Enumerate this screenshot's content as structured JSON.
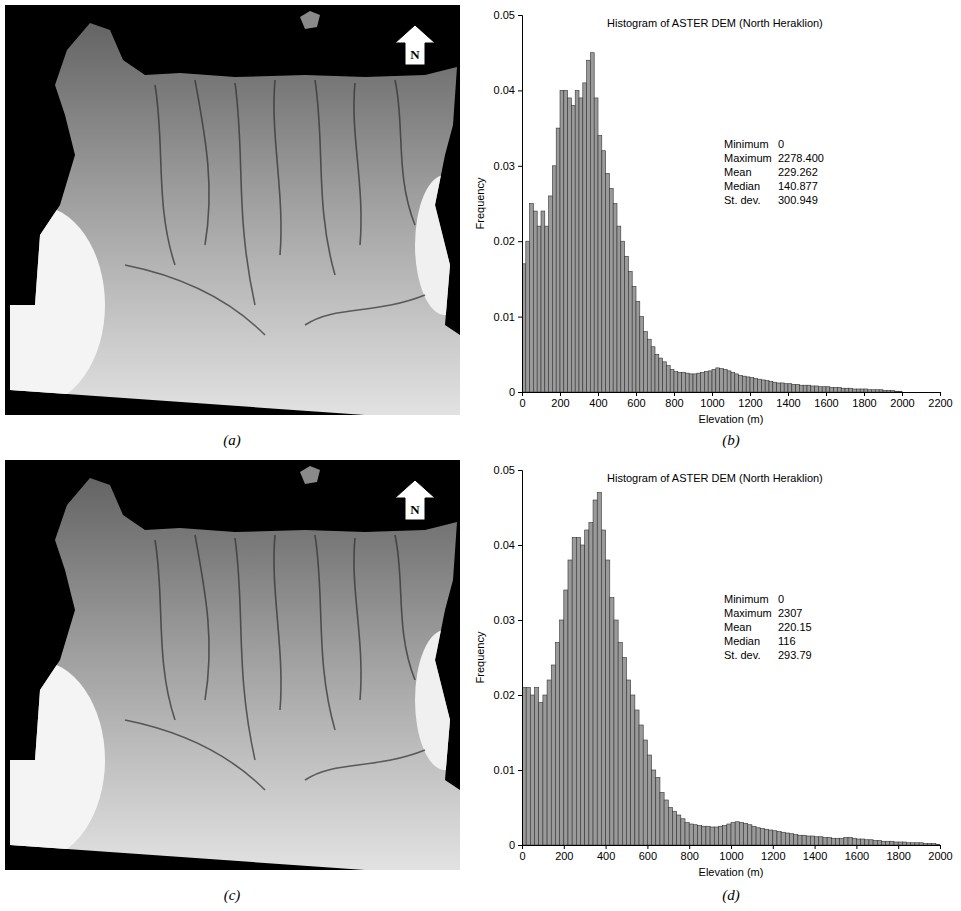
{
  "maps": [
    {
      "panel": "(a)",
      "north_label": "N"
    },
    {
      "panel": "(c)",
      "north_label": "N"
    }
  ],
  "chart_data": [
    {
      "type": "histogram",
      "panel": "(b)",
      "title": "Histogram of ASTER DEM (North Heraklion)",
      "x_label": "Elevation (m)",
      "y_label": "Frequency",
      "color": "#9a9a9a",
      "annotations": [
        {
          "label": "Minimum",
          "value": "0"
        },
        {
          "label": "Maximum",
          "value": "2278.400"
        },
        {
          "label": "Mean",
          "value": "229.262"
        },
        {
          "label": "Median",
          "value": "140.877"
        },
        {
          "label": "St. dev.",
          "value": "300.949"
        }
      ],
      "bins": [
        0,
        20,
        40,
        60,
        80,
        100,
        120,
        140,
        160,
        180,
        200,
        220,
        240,
        260,
        280,
        300,
        320,
        340,
        360,
        380,
        400,
        420,
        440,
        460,
        480,
        500,
        520,
        540,
        560,
        580,
        600,
        620,
        640,
        660,
        680,
        700,
        720,
        740,
        760,
        780,
        800,
        820,
        840,
        860,
        880,
        900,
        920,
        940,
        960,
        980,
        1000,
        1020,
        1040,
        1060,
        1080,
        1100,
        1120,
        1140,
        1160,
        1180,
        1200,
        1220,
        1240,
        1260,
        1280,
        1300,
        1320,
        1340,
        1360,
        1380,
        1400,
        1420,
        1440,
        1460,
        1480,
        1500,
        1520,
        1540,
        1560,
        1580,
        1600,
        1620,
        1640,
        1660,
        1680,
        1700,
        1720,
        1740,
        1760,
        1780,
        1800,
        1820,
        1840,
        1860,
        1880,
        1900,
        1920,
        1940,
        1960,
        1980,
        2000
      ],
      "values": [
        0.017,
        0.02,
        0.025,
        0.024,
        0.022,
        0.024,
        0.022,
        0.026,
        0.03,
        0.035,
        0.04,
        0.04,
        0.039,
        0.038,
        0.04,
        0.039,
        0.041,
        0.044,
        0.045,
        0.039,
        0.034,
        0.032,
        0.029,
        0.027,
        0.025,
        0.022,
        0.02,
        0.018,
        0.016,
        0.014,
        0.012,
        0.01,
        0.008,
        0.007,
        0.006,
        0.005,
        0.0045,
        0.004,
        0.0035,
        0.003,
        0.0027,
        0.0026,
        0.0026,
        0.0025,
        0.0024,
        0.0024,
        0.0025,
        0.0026,
        0.0027,
        0.0028,
        0.003,
        0.0032,
        0.0031,
        0.003,
        0.0028,
        0.0026,
        0.0024,
        0.0022,
        0.0021,
        0.002,
        0.0019,
        0.0018,
        0.0017,
        0.0016,
        0.0015,
        0.0014,
        0.0013,
        0.0012,
        0.0012,
        0.0011,
        0.0011,
        0.001,
        0.001,
        0.0009,
        0.0009,
        0.0009,
        0.0008,
        0.0008,
        0.0007,
        0.0007,
        0.0007,
        0.0006,
        0.0006,
        0.0006,
        0.0005,
        0.0005,
        0.0005,
        0.0004,
        0.0004,
        0.0004,
        0.0004,
        0.0003,
        0.0003,
        0.0003,
        0.0003,
        0.0002,
        0.0002,
        0.0002,
        0.0001,
        0.0001
      ],
      "xlim": [
        0,
        2200
      ],
      "xticks": [
        0,
        200,
        400,
        600,
        800,
        1000,
        1200,
        1400,
        1600,
        1800,
        2000,
        2200
      ],
      "ylim": [
        0,
        0.05
      ],
      "yticks": [
        0,
        0.01,
        0.02,
        0.03,
        0.04,
        0.05
      ],
      "grid": false
    },
    {
      "type": "histogram",
      "panel": "(d)",
      "title": "Histogram of ASTER DEM (North Heraklion)",
      "x_label": "Elevation (m)",
      "y_label": "Frequency",
      "color": "#9a9a9a",
      "annotations": [
        {
          "label": "Minimum",
          "value": "0"
        },
        {
          "label": "Maximum",
          "value": "2307"
        },
        {
          "label": "Mean",
          "value": "220.15"
        },
        {
          "label": "Median",
          "value": "116"
        },
        {
          "label": "St. dev.",
          "value": "293.79"
        }
      ],
      "bins": [
        0,
        20,
        40,
        60,
        80,
        100,
        120,
        140,
        160,
        180,
        200,
        220,
        240,
        260,
        280,
        300,
        320,
        340,
        360,
        380,
        400,
        420,
        440,
        460,
        480,
        500,
        520,
        540,
        560,
        580,
        600,
        620,
        640,
        660,
        680,
        700,
        720,
        740,
        760,
        780,
        800,
        820,
        840,
        860,
        880,
        900,
        920,
        940,
        960,
        980,
        1000,
        1020,
        1040,
        1060,
        1080,
        1100,
        1120,
        1140,
        1160,
        1180,
        1200,
        1220,
        1240,
        1260,
        1280,
        1300,
        1320,
        1340,
        1360,
        1380,
        1400,
        1420,
        1440,
        1460,
        1480,
        1500,
        1520,
        1540,
        1560,
        1580,
        1600,
        1620,
        1640,
        1660,
        1680,
        1700,
        1720,
        1740,
        1760,
        1780,
        1800,
        1820,
        1840,
        1860,
        1880,
        1900,
        1920,
        1940,
        1960,
        1980,
        2000
      ],
      "values": [
        0.021,
        0.021,
        0.02,
        0.021,
        0.019,
        0.02,
        0.022,
        0.024,
        0.027,
        0.03,
        0.034,
        0.038,
        0.041,
        0.041,
        0.04,
        0.042,
        0.043,
        0.046,
        0.047,
        0.042,
        0.038,
        0.033,
        0.03,
        0.027,
        0.025,
        0.022,
        0.02,
        0.018,
        0.016,
        0.014,
        0.012,
        0.01,
        0.009,
        0.007,
        0.006,
        0.005,
        0.0045,
        0.004,
        0.0035,
        0.003,
        0.0028,
        0.0027,
        0.0026,
        0.0025,
        0.0025,
        0.0024,
        0.0024,
        0.0025,
        0.0026,
        0.0028,
        0.003,
        0.0031,
        0.003,
        0.0029,
        0.0027,
        0.0025,
        0.0023,
        0.0022,
        0.0021,
        0.002,
        0.0019,
        0.0018,
        0.0017,
        0.0016,
        0.0015,
        0.0014,
        0.0013,
        0.0013,
        0.0012,
        0.0012,
        0.0011,
        0.0011,
        0.001,
        0.001,
        0.0009,
        0.0009,
        0.0009,
        0.001,
        0.001,
        0.0009,
        0.0008,
        0.0008,
        0.0007,
        0.0007,
        0.0006,
        0.0006,
        0.0005,
        0.0005,
        0.0005,
        0.0004,
        0.0004,
        0.0004,
        0.0003,
        0.0003,
        0.0003,
        0.0003,
        0.0002,
        0.0002,
        0.0002,
        0.0001
      ],
      "xlim": [
        0,
        2000
      ],
      "xticks": [
        0,
        200,
        400,
        600,
        800,
        1000,
        1200,
        1400,
        1600,
        1800,
        2000
      ],
      "ylim": [
        0,
        0.05
      ],
      "yticks": [
        0,
        0.01,
        0.02,
        0.03,
        0.04,
        0.05
      ],
      "grid": false
    }
  ]
}
